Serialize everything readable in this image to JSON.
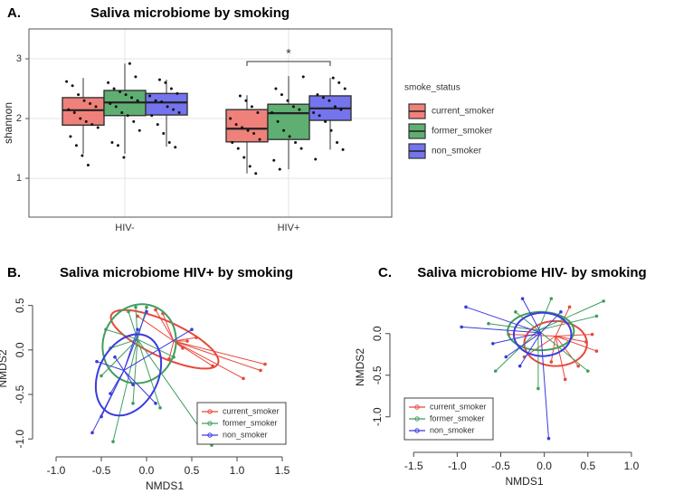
{
  "chart_data": [
    {
      "type": "box",
      "panel": "A.",
      "title": "Saliva microbiome by smoking",
      "ylabel": "shannon",
      "categories": [
        "HIV-",
        "HIV+"
      ],
      "ylim": [
        0.35,
        3.5
      ],
      "yticks": [
        1,
        2,
        3
      ],
      "grid": true,
      "legend_title": "smoke_status",
      "annotation": "*",
      "series": [
        {
          "name": "current_smoker",
          "color": "#f0807a",
          "boxes": [
            {
              "low": 1.41,
              "q1": 1.89,
              "median": 2.14,
              "q3": 2.35,
              "high": 2.68
            },
            {
              "low": 1.08,
              "q1": 1.61,
              "median": 1.83,
              "q3": 2.15,
              "high": 2.39
            }
          ],
          "points": [
            [
              2.62,
              2.55,
              2.4,
              2.3,
              2.25,
              2.2,
              2.15,
              2.1,
              2.0,
              1.95,
              1.9,
              1.85,
              1.7,
              1.55,
              1.38,
              1.22
            ],
            [
              2.38,
              2.3,
              2.2,
              2.1,
              2.0,
              1.9,
              1.85,
              1.8,
              1.75,
              1.65,
              1.6,
              1.5,
              1.35,
              1.2,
              1.08
            ]
          ]
        },
        {
          "name": "former_smoker",
          "color": "#5fae72",
          "boxes": [
            {
              "low": 1.41,
              "q1": 2.05,
              "median": 2.27,
              "q3": 2.47,
              "high": 2.92
            },
            {
              "low": 1.15,
              "q1": 1.65,
              "median": 2.09,
              "q3": 2.24,
              "high": 2.71
            }
          ],
          "points": [
            [
              2.92,
              2.7,
              2.6,
              2.5,
              2.45,
              2.4,
              2.35,
              2.3,
              2.25,
              2.2,
              2.1,
              2.05,
              1.95,
              1.8,
              1.6,
              1.55,
              1.35
            ],
            [
              2.7,
              2.5,
              2.4,
              2.3,
              2.2,
              2.15,
              2.1,
              1.95,
              1.8,
              1.7,
              1.6,
              1.5,
              1.3,
              1.15
            ]
          ]
        },
        {
          "name": "non_smoker",
          "color": "#7474ee",
          "boxes": [
            {
              "low": 1.53,
              "q1": 2.06,
              "median": 2.27,
              "q3": 2.42,
              "high": 2.65
            },
            {
              "low": 1.48,
              "q1": 1.97,
              "median": 2.17,
              "q3": 2.38,
              "high": 2.68
            }
          ],
          "points": [
            [
              2.65,
              2.6,
              2.5,
              2.42,
              2.38,
              2.3,
              2.28,
              2.2,
              2.15,
              2.1,
              2.05,
              1.9,
              1.75,
              1.6,
              1.52
            ],
            [
              2.68,
              2.6,
              2.5,
              2.4,
              2.35,
              2.3,
              2.2,
              2.15,
              2.1,
              2.05,
              1.95,
              1.8,
              1.6,
              1.48,
              1.32
            ]
          ]
        }
      ]
    },
    {
      "type": "scatter",
      "panel": "B.",
      "title": "Saliva microbiome HIV+ by smoking",
      "xlabel": "NMDS1",
      "ylabel": "NMDS2",
      "xlim": [
        -1.2,
        1.6
      ],
      "ylim": [
        -1.12,
        0.7
      ],
      "xticks": [
        {
          "value": -1,
          "label": "-1.0"
        },
        -0.5,
        {
          "value": 0,
          "label": "0.0"
        },
        0.5,
        {
          "value": 1,
          "label": "1.0"
        },
        1.5
      ],
      "yticks": [
        {
          "value": -1,
          "label": "-1.0"
        },
        -0.5,
        {
          "value": 0,
          "label": "0.0"
        },
        0.5
      ],
      "legend": "bottom-right",
      "series": [
        {
          "name": "current_smoker",
          "color": "#e8483c",
          "centroid": [
            0.3,
            0.1
          ],
          "ellipse": {
            "cx": 0.2,
            "cy": 0.12,
            "rx": 0.65,
            "ry": 0.2,
            "angle": -25
          },
          "x": [
            1.31,
            1.26,
            1.07,
            0.73,
            0.55,
            0.18,
            0.1,
            0.4,
            -0.1,
            0.45,
            0.25
          ],
          "y": [
            -0.16,
            -0.23,
            -0.32,
            -0.18,
            0.14,
            0.41,
            0.45,
            0.02,
            0.38,
            0.1,
            -0.1
          ]
        },
        {
          "name": "former_smoker",
          "color": "#3f9e5c",
          "centroid": [
            -0.1,
            0.12
          ],
          "ellipse": {
            "cx": -0.08,
            "cy": 0.07,
            "rx": 0.45,
            "ry": 0.4,
            "angle": 70
          },
          "x": [
            0.72,
            -0.37,
            -0.12,
            -0.2,
            0,
            -0.4,
            -0.5,
            0.15,
            -0.15,
            0.3,
            -0.45
          ],
          "y": [
            -1.07,
            -1.03,
            0.48,
            0.43,
            0.48,
            0.02,
            -0.29,
            -0.65,
            -0.6,
            -0.08,
            0.23
          ]
        },
        {
          "name": "non_smoker",
          "color": "#3a3ae0",
          "centroid": [
            -0.25,
            -0.23
          ],
          "ellipse": {
            "cx": -0.2,
            "cy": -0.28,
            "rx": 0.48,
            "ry": 0.33,
            "angle": 65
          },
          "x": [
            -0.6,
            -0.5,
            0.1,
            -0.55,
            -0.35,
            -0.1,
            0,
            -0.4,
            -0.15,
            0.5
          ],
          "y": [
            -0.93,
            -0.75,
            -0.6,
            -0.13,
            -0.08,
            0.23,
            0.43,
            -0.49,
            -0.39,
            0.23
          ]
        }
      ]
    },
    {
      "type": "scatter",
      "panel": "C.",
      "title": "Saliva microbiome HIV- by smoking",
      "xlabel": "NMDS1",
      "ylabel": "NMDS2",
      "xlim": [
        -1.71,
        1.25
      ],
      "ylim": [
        -1.34,
        0.53
      ],
      "xticks": [
        -1.5,
        {
          "value": -1,
          "label": "-1.0"
        },
        -0.5,
        {
          "value": 0,
          "label": "0.0"
        },
        0.5,
        {
          "value": 1,
          "label": "1.0"
        }
      ],
      "yticks": [
        {
          "value": -1,
          "label": "-1.0"
        },
        -0.5,
        {
          "value": 0,
          "label": "0.0"
        }
      ],
      "legend": "bottom-left",
      "series": [
        {
          "name": "current_smoker",
          "color": "#e8483c",
          "centroid": [
            0.13,
            -0.03
          ],
          "ellipse": {
            "cx": 0.13,
            "cy": -0.12,
            "rx": 0.36,
            "ry": 0.27,
            "angle": 0
          },
          "x": [
            0.48,
            0.39,
            0.24,
            0.55,
            0.6,
            0.29,
            -0.23,
            0.08,
            -0.41
          ],
          "y": [
            -0.1,
            -0.39,
            -0.55,
            -0.01,
            -0.21,
            0.32,
            -0.28,
            -0.34,
            -0.01
          ]
        },
        {
          "name": "former_smoker",
          "color": "#3f9e5c",
          "centroid": [
            -0.07,
            0.04
          ],
          "ellipse": {
            "cx": -0.04,
            "cy": 0.03,
            "rx": 0.38,
            "ry": 0.23,
            "angle": 0
          },
          "x": [
            0.68,
            -0.56,
            -0.07,
            -0.64,
            0.08,
            0.6,
            -0.33,
            0.5
          ],
          "y": [
            0.39,
            -0.45,
            -0.66,
            0.12,
            0.42,
            0.21,
            0.26,
            -0.45
          ]
        },
        {
          "name": "non_smoker",
          "color": "#3a3ae0",
          "centroid": [
            -0.04,
            0.01
          ],
          "ellipse": {
            "cx": -0.02,
            "cy": -0.01,
            "rx": 0.33,
            "ry": 0.26,
            "angle": 0
          },
          "x": [
            0.05,
            -0.95,
            -0.9,
            -0.25,
            -0.28,
            -0.44,
            0.19,
            -0.59
          ],
          "y": [
            -1.26,
            0.08,
            0.32,
            0.42,
            -0.39,
            -0.28,
            0.26,
            -0.12
          ]
        }
      ]
    }
  ]
}
